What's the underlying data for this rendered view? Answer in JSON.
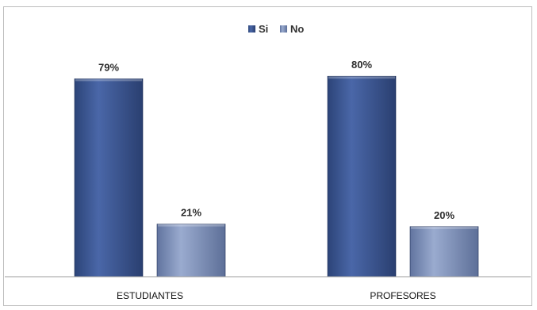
{
  "chart_data": {
    "type": "bar",
    "title": "",
    "xlabel": "",
    "ylabel": "",
    "categories": [
      "ESTUDIANTES",
      "PROFESORES"
    ],
    "series": [
      {
        "name": "Si",
        "values": [
          79,
          80
        ],
        "labels": [
          "79%",
          "80%"
        ],
        "color": "#3a5591"
      },
      {
        "name": "No",
        "values": [
          21,
          20
        ],
        "labels": [
          "21%",
          "20%"
        ],
        "color": "#7c8fb8"
      }
    ],
    "ylim": [
      0,
      100
    ],
    "grid": false,
    "legend": "top-center"
  }
}
